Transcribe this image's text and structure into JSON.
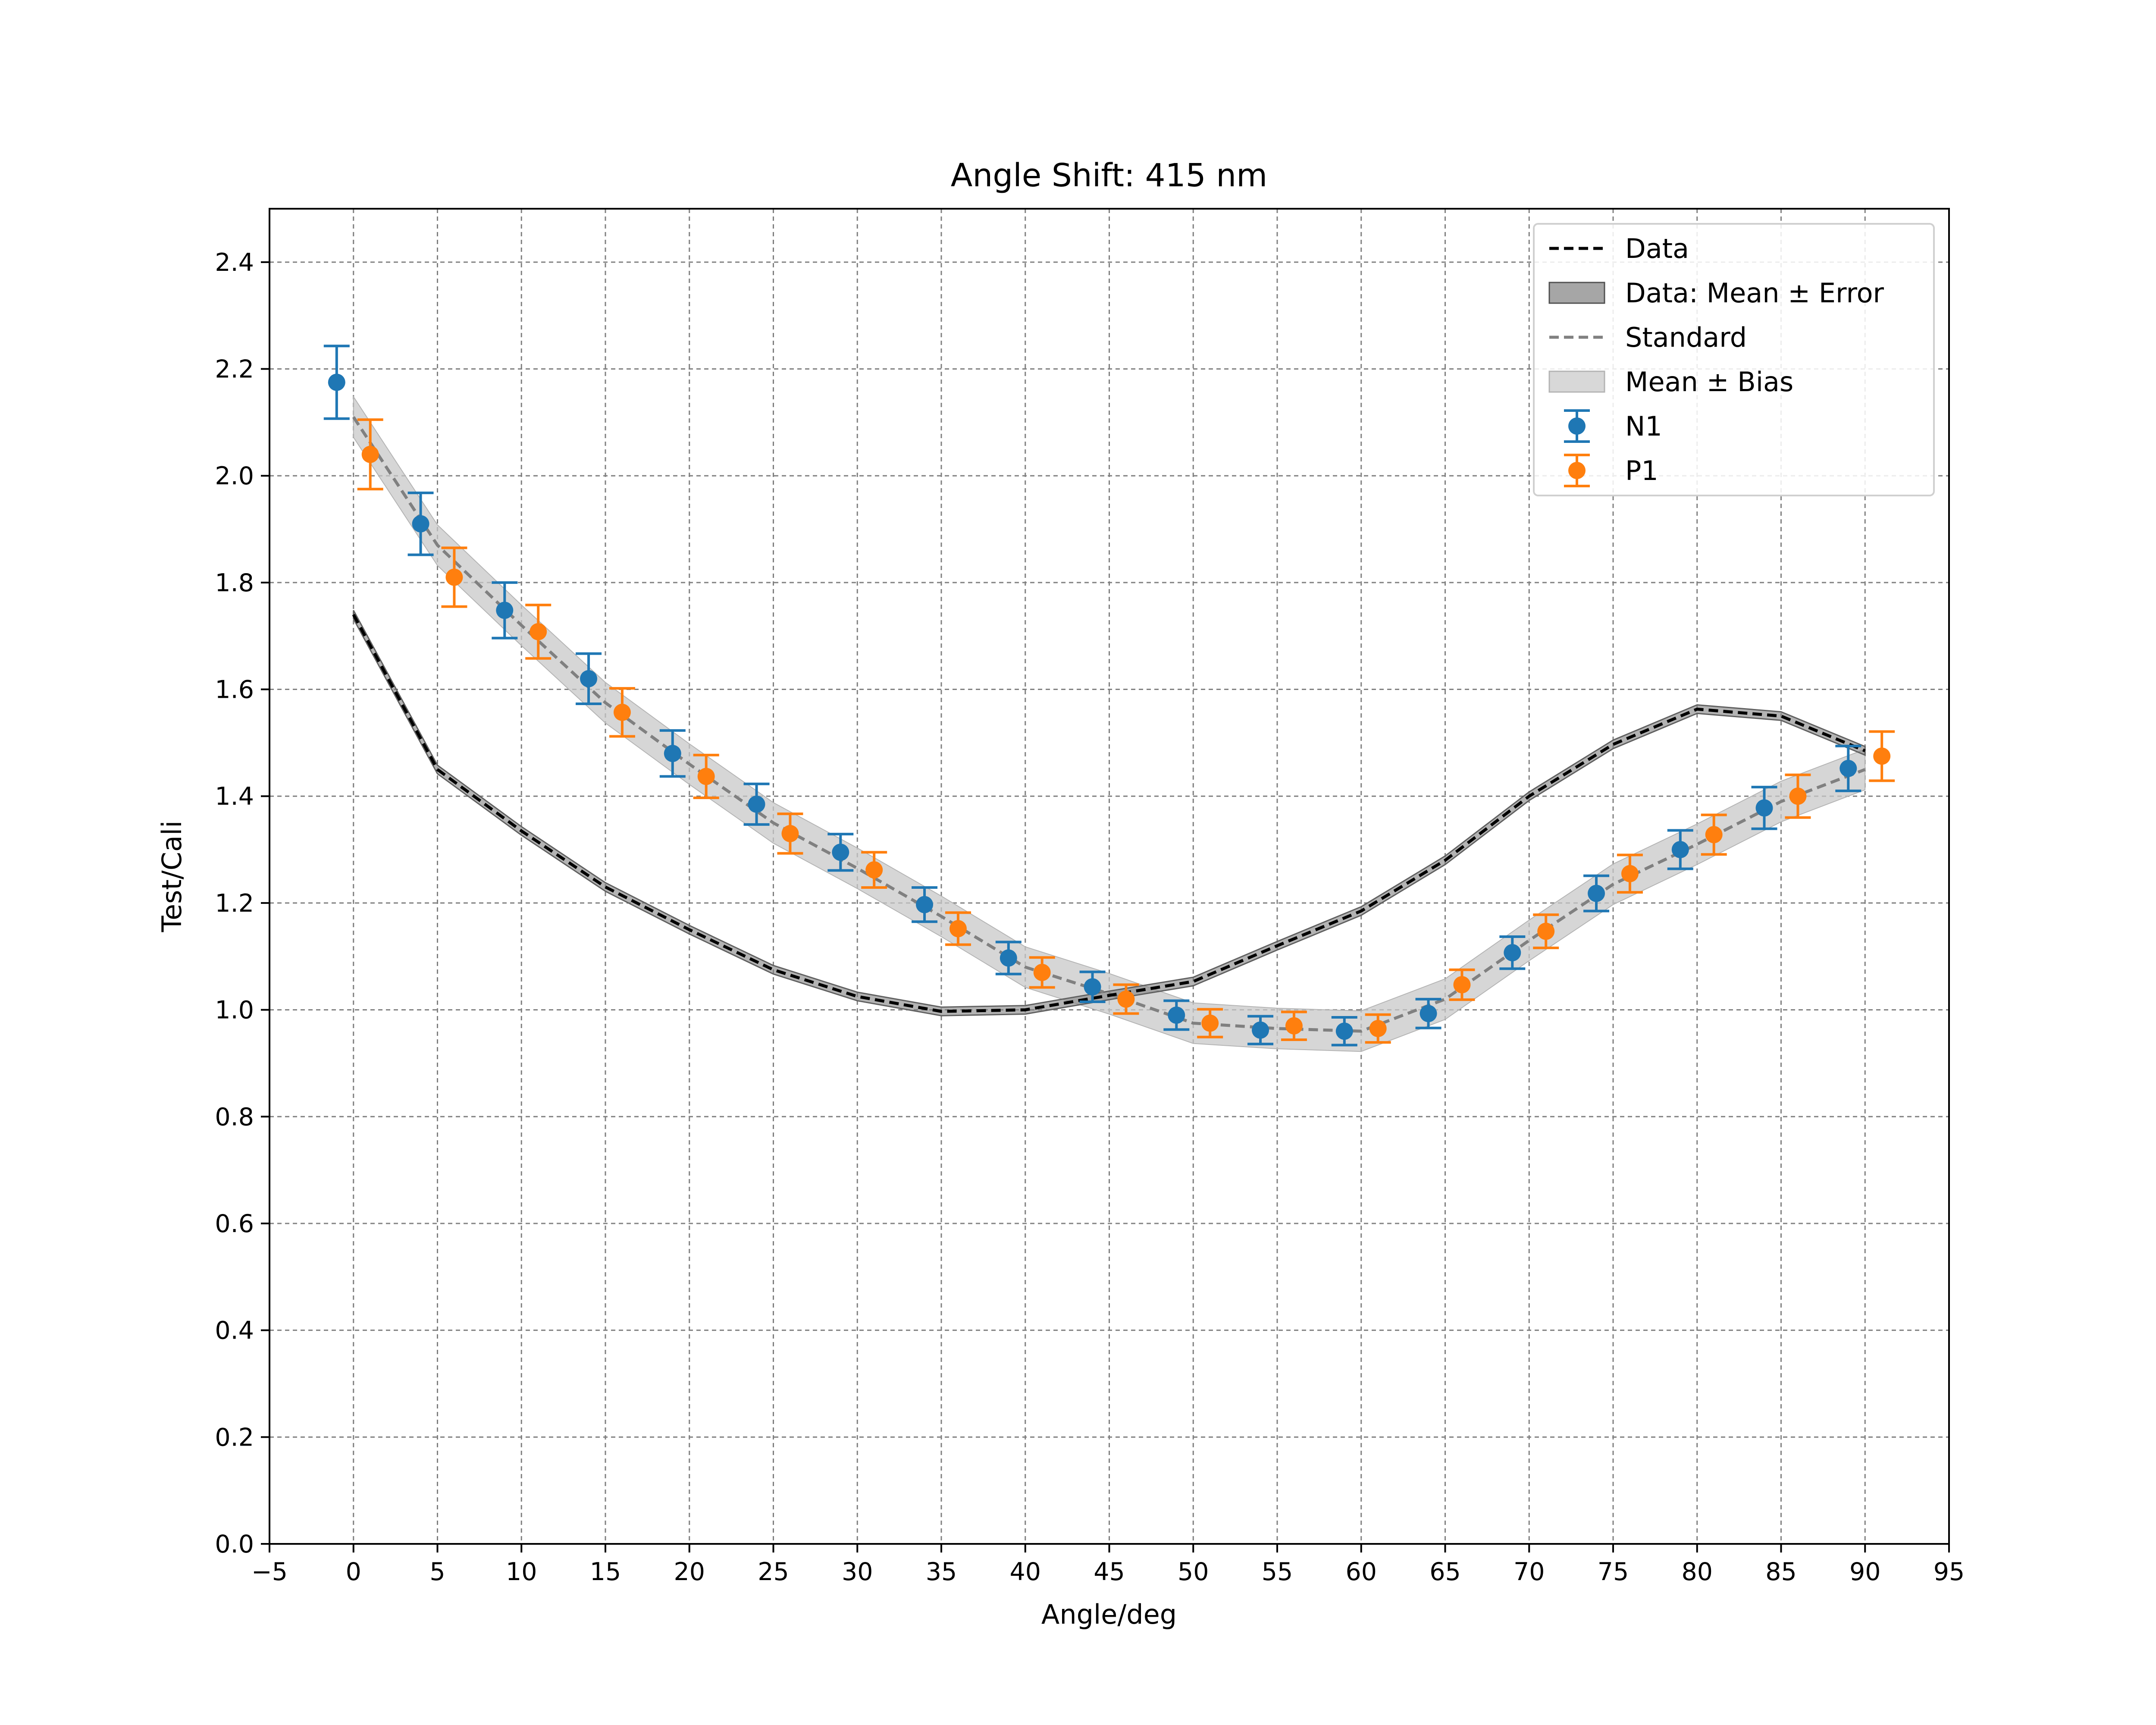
{
  "chart_data": {
    "type": "line",
    "title": "Angle Shift: 415 nm",
    "xlabel": "Angle/deg",
    "ylabel": "Test/Cali",
    "xlim": [
      -5,
      95
    ],
    "ylim": [
      0.0,
      2.5
    ],
    "xticks": [
      -5,
      0,
      5,
      10,
      15,
      20,
      25,
      30,
      35,
      40,
      45,
      50,
      55,
      60,
      65,
      70,
      75,
      80,
      85,
      90,
      95
    ],
    "yticks": [
      0.0,
      0.2,
      0.4,
      0.6,
      0.8,
      1.0,
      1.2,
      1.4,
      1.6,
      1.8,
      2.0,
      2.2,
      2.4
    ],
    "ytick_labels": [
      "0.0",
      "0.2",
      "0.4",
      "0.6",
      "0.8",
      "1.0",
      "1.2",
      "1.4",
      "1.6",
      "1.8",
      "2.0",
      "2.2",
      "2.4"
    ],
    "grid": true,
    "legend_position": "top-right",
    "legend": [
      {
        "label": "Data",
        "kind": "dashed-line",
        "color": "#000000"
      },
      {
        "label": "Data: Mean ± Error",
        "kind": "band",
        "color": "#808080"
      },
      {
        "label": "Standard",
        "kind": "dashed-line",
        "color": "#808080"
      },
      {
        "label": "Mean ± Bias",
        "kind": "band",
        "color": "#c8c8c8"
      },
      {
        "label": "N1",
        "kind": "errorbar",
        "color": "#1f77b4"
      },
      {
        "label": "P1",
        "kind": "errorbar",
        "color": "#ff7f0e"
      }
    ],
    "series": [
      {
        "name": "Data",
        "kind": "line",
        "color": "#000000",
        "band_error": 0.008,
        "x": [
          0,
          5,
          10,
          15,
          20,
          25,
          30,
          35,
          40,
          45,
          50,
          55,
          60,
          65,
          70,
          75,
          80,
          85,
          90
        ],
        "y": [
          1.74,
          1.45,
          1.335,
          1.23,
          1.15,
          1.075,
          1.025,
          0.997,
          1.0,
          1.027,
          1.053,
          1.12,
          1.185,
          1.28,
          1.4,
          1.497,
          1.563,
          1.55,
          1.485
        ]
      },
      {
        "name": "Standard",
        "kind": "line",
        "color": "#808080",
        "band_bias": 0.038,
        "x": [
          0,
          5,
          10,
          15,
          20,
          25,
          30,
          35,
          40,
          45,
          50,
          55,
          60,
          65,
          70,
          75,
          80,
          85,
          90
        ],
        "y": [
          2.11,
          1.87,
          1.72,
          1.575,
          1.46,
          1.35,
          1.265,
          1.175,
          1.08,
          1.03,
          0.975,
          0.965,
          0.96,
          1.02,
          1.13,
          1.235,
          1.31,
          1.39,
          1.45
        ]
      },
      {
        "name": "N1",
        "kind": "errorbar",
        "color": "#1f77b4",
        "x": [
          -1,
          4,
          9,
          14,
          19,
          24,
          29,
          34,
          39,
          44,
          49,
          54,
          59,
          64,
          69,
          74,
          79,
          84,
          89
        ],
        "y": [
          2.175,
          1.91,
          1.748,
          1.62,
          1.48,
          1.385,
          1.295,
          1.197,
          1.097,
          1.043,
          0.99,
          0.962,
          0.96,
          0.993,
          1.107,
          1.218,
          1.3,
          1.378,
          1.452
        ],
        "yerr": [
          0.068,
          0.058,
          0.052,
          0.047,
          0.043,
          0.038,
          0.034,
          0.032,
          0.03,
          0.028,
          0.027,
          0.026,
          0.026,
          0.027,
          0.03,
          0.033,
          0.036,
          0.039,
          0.042
        ]
      },
      {
        "name": "P1",
        "kind": "errorbar",
        "color": "#ff7f0e",
        "x": [
          1,
          6,
          11,
          16,
          21,
          26,
          31,
          36,
          41,
          46,
          51,
          56,
          61,
          66,
          71,
          76,
          81,
          86,
          91
        ],
        "y": [
          2.04,
          1.81,
          1.708,
          1.557,
          1.437,
          1.33,
          1.262,
          1.152,
          1.07,
          1.02,
          0.975,
          0.97,
          0.965,
          1.047,
          1.147,
          1.255,
          1.328,
          1.4,
          1.475
        ],
        "yerr": [
          0.065,
          0.055,
          0.05,
          0.045,
          0.04,
          0.037,
          0.033,
          0.03,
          0.028,
          0.027,
          0.026,
          0.026,
          0.026,
          0.028,
          0.031,
          0.035,
          0.037,
          0.04,
          0.046
        ]
      }
    ]
  }
}
